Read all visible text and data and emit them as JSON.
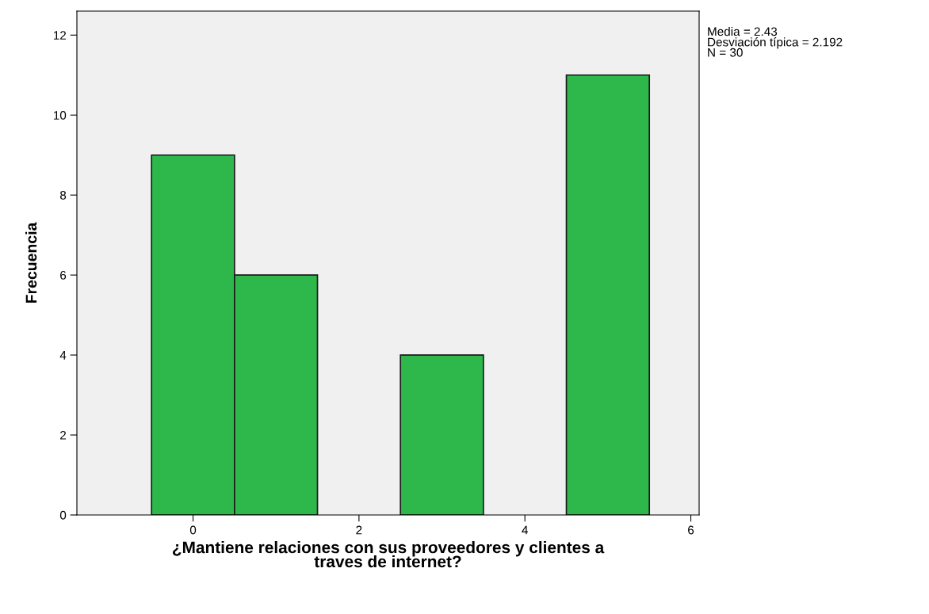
{
  "chart_data": {
    "type": "histogram",
    "xlabel": "¿Mantiene relaciones con sus proveedores y clientes a\ntraves de internet?",
    "ylabel": "Frecuencia",
    "bins": [
      -0.5,
      0.5,
      1.5,
      2.5,
      3.5,
      4.5,
      5.5
    ],
    "values": [
      9,
      6,
      0,
      4,
      0,
      11
    ],
    "color": "#2eb84b",
    "xlim": [
      -1.4,
      6.1
    ],
    "xticks": [
      0,
      2,
      4,
      6
    ],
    "ylim": [
      0,
      12.6
    ],
    "yticks": [
      0,
      2,
      4,
      6,
      8,
      10,
      12
    ],
    "annotations": [
      "Media = 2.43\nDesviación típica = 2.192\nN = 30"
    ],
    "grid": false
  }
}
